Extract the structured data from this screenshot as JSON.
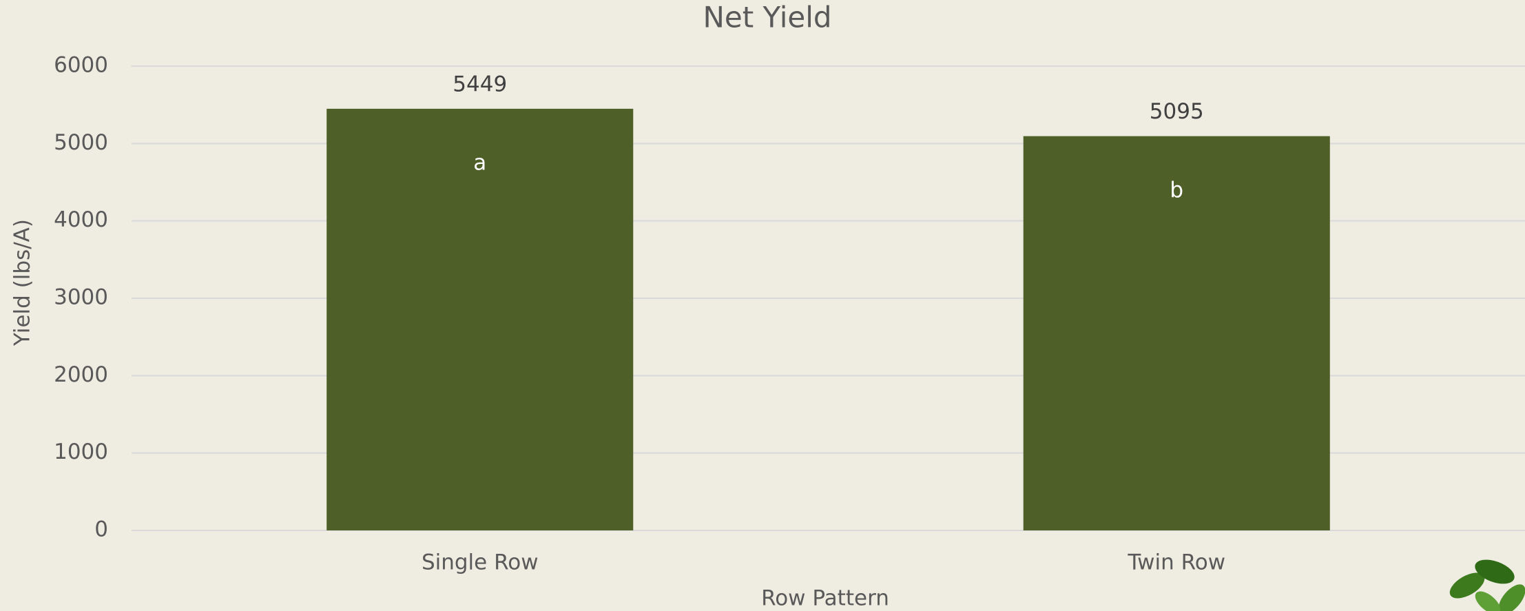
{
  "chart_data": {
    "type": "bar",
    "title": "Net Yield",
    "x_label": "Row Pattern",
    "y_label": "Yield (lbs/A)",
    "categories": [
      "Single Row",
      "Twin Row"
    ],
    "values": [
      5449,
      5095
    ],
    "annotations": [
      "a",
      "b"
    ],
    "color": "#4f5f28",
    "ylim": [
      0,
      6000
    ],
    "yticks": [
      0,
      1000,
      2000,
      3000,
      4000,
      5000,
      6000
    ],
    "grid": true
  }
}
